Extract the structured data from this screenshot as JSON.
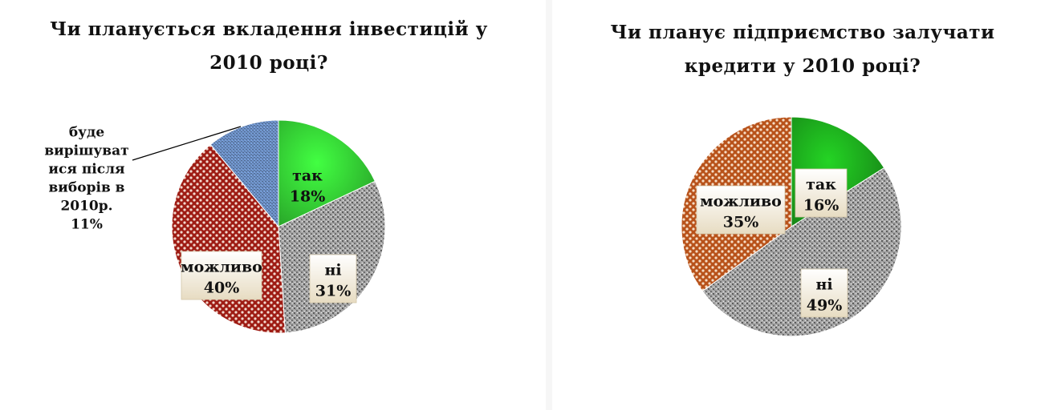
{
  "chart_data": [
    {
      "type": "pie",
      "title": "Чи планується вкладення інвестицій у 2010 році?",
      "slices": [
        {
          "category": "так",
          "value": 18,
          "value_label": "18%",
          "color": "#39e639",
          "pattern": "solid-gradient"
        },
        {
          "category": "ні",
          "value": 31,
          "value_label": "31%",
          "color": "#a9a9a9",
          "pattern": "granite"
        },
        {
          "category": "можливо",
          "value": 40,
          "value_label": "40%",
          "color": "#9e1c14",
          "pattern": "red-checker"
        },
        {
          "category": "буде вирішуватися після виборів в 2010р.",
          "value": 11,
          "value_label": "11%",
          "color": "#6f93c9",
          "pattern": "blue-weave"
        }
      ],
      "label_lines": {
        "так": [
          "так",
          "18%"
        ],
        "ні": [
          "ні",
          "31%"
        ],
        "можливо": [
          "можливо",
          "40%"
        ],
        "буде вирішуватися після виборів в 2010р.": [
          "буде",
          "вирішуват",
          "ися після",
          "виборів в",
          "2010р.",
          "11%"
        ]
      }
    },
    {
      "type": "pie",
      "title": "Чи планує підприємство залучати кредити у 2010 році?",
      "slices": [
        {
          "category": "так",
          "value": 16,
          "value_label": "16%",
          "color": "#1fb81f",
          "pattern": "solid-gradient"
        },
        {
          "category": "ні",
          "value": 49,
          "value_label": "49%",
          "color": "#a9a9a9",
          "pattern": "granite"
        },
        {
          "category": "можливо",
          "value": 35,
          "value_label": "35%",
          "color": "#b8521a",
          "pattern": "orange-checker"
        }
      ],
      "label_lines": {
        "так": [
          "так",
          "16%"
        ],
        "ні": [
          "ні",
          "49%"
        ],
        "можливо": [
          "можливо",
          "35%"
        ]
      }
    }
  ]
}
